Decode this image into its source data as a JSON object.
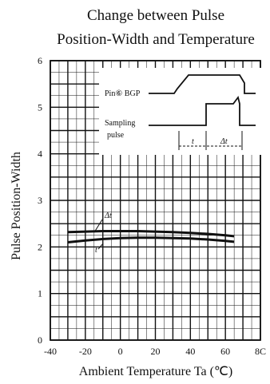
{
  "chart_data": {
    "type": "line",
    "title_lines": [
      "Change between Pulse",
      "Position-Width and Temperature"
    ],
    "xlabel": "Ambient Temperature Ta (℃)",
    "ylabel": "Pulse Position-Width",
    "xlim": [
      -40,
      80
    ],
    "ylim": [
      0,
      6
    ],
    "x_ticks": [
      "-40",
      "-20",
      "0",
      "20",
      "40",
      "60",
      "8C"
    ],
    "y_ticks": [
      "0",
      "1",
      "2",
      "3",
      "4",
      "5",
      "6"
    ],
    "grid": true,
    "series": [
      {
        "name": "Δt",
        "x": [
          -30,
          -20,
          -10,
          0,
          10,
          20,
          30,
          40,
          50,
          60,
          65
        ],
        "y": [
          2.32,
          2.33,
          2.34,
          2.34,
          2.34,
          2.33,
          2.32,
          2.3,
          2.28,
          2.25,
          2.23
        ]
      },
      {
        "name": "t",
        "x": [
          -30,
          -20,
          -10,
          0,
          10,
          20,
          30,
          40,
          50,
          60,
          65
        ],
        "y": [
          2.1,
          2.14,
          2.17,
          2.19,
          2.2,
          2.2,
          2.19,
          2.18,
          2.16,
          2.13,
          2.11
        ]
      }
    ],
    "inset": {
      "signal1_label": "Pin⑥ BGP",
      "signal2_label_line1": "Sampling",
      "signal2_label_line2": "pulse",
      "t_label": "t",
      "dt_label": "Δt"
    }
  }
}
